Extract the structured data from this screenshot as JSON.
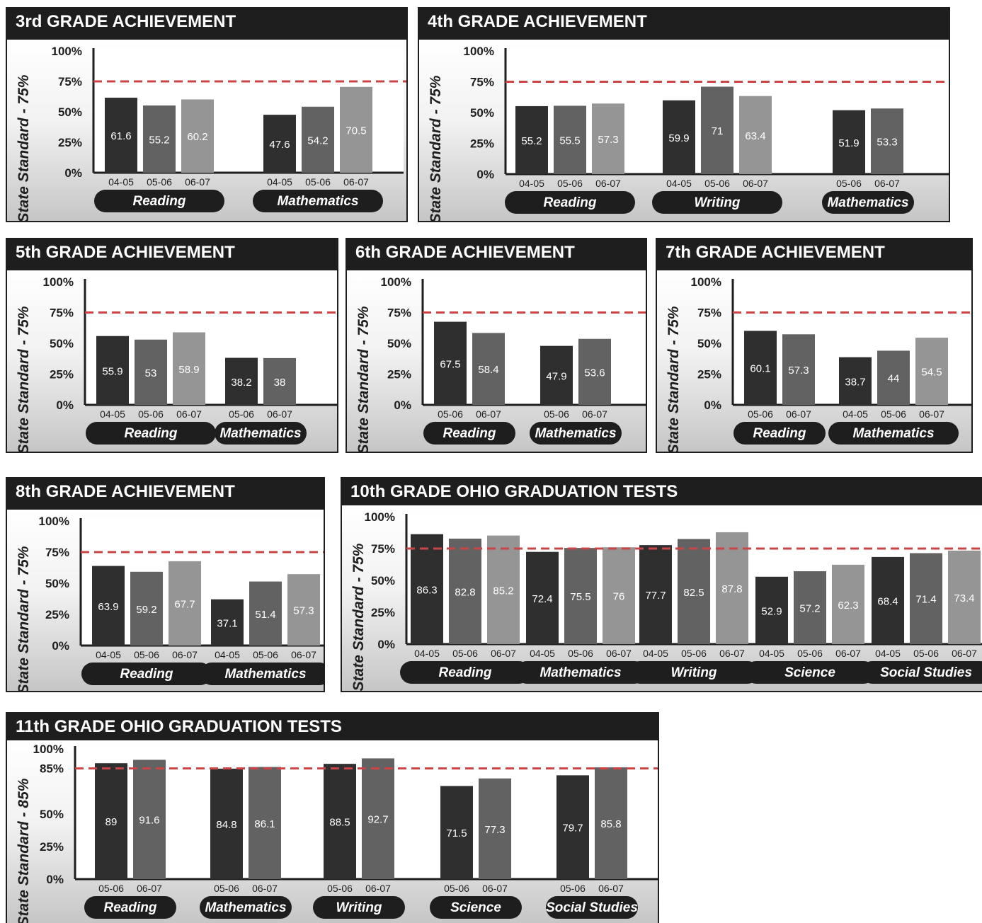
{
  "colors": {
    "bar_dark": "#2f2f2f",
    "bar_mid": "#626262",
    "bar_light": "#959595",
    "standard_line": "#cc4444",
    "panel_header": "#1e1e1e",
    "pill": "#1e1e1e"
  },
  "chart_data": [
    {
      "type": "bar",
      "title": "3rd GRADE ACHIEVEMENT",
      "ylabel": "State Standard - 75%",
      "ylim": [
        0,
        100
      ],
      "yticks": [
        "100%",
        "75%",
        "50%",
        "25%",
        "0%"
      ],
      "standard": 75,
      "groups": [
        {
          "name": "Reading",
          "bars": [
            {
              "label": "04-05",
              "value": 61.6
            },
            {
              "label": "05-06",
              "value": 55.2
            },
            {
              "label": "06-07",
              "value": 60.2
            }
          ]
        },
        {
          "name": "Mathematics",
          "bars": [
            {
              "label": "04-05",
              "value": 47.6
            },
            {
              "label": "05-06",
              "value": 54.2
            },
            {
              "label": "06-07",
              "value": 70.5
            }
          ]
        }
      ]
    },
    {
      "type": "bar",
      "title": "4th GRADE ACHIEVEMENT",
      "ylabel": "State Standard - 75%",
      "ylim": [
        0,
        100
      ],
      "yticks": [
        "100%",
        "75%",
        "50%",
        "25%",
        "0%"
      ],
      "standard": 75,
      "groups": [
        {
          "name": "Reading",
          "bars": [
            {
              "label": "04-05",
              "value": 55.2
            },
            {
              "label": "05-06",
              "value": 55.5
            },
            {
              "label": "06-07",
              "value": 57.3
            }
          ]
        },
        {
          "name": "Writing",
          "bars": [
            {
              "label": "04-05",
              "value": 59.9
            },
            {
              "label": "05-06",
              "value": 71
            },
            {
              "label": "06-07",
              "value": 63.4
            }
          ]
        },
        {
          "name": "Mathematics",
          "bars": [
            {
              "label": "05-06",
              "value": 51.9
            },
            {
              "label": "06-07",
              "value": 53.3
            }
          ]
        }
      ]
    },
    {
      "type": "bar",
      "title": "5th GRADE ACHIEVEMENT",
      "ylabel": "State Standard - 75%",
      "ylim": [
        0,
        100
      ],
      "yticks": [
        "100%",
        "75%",
        "50%",
        "25%",
        "0%"
      ],
      "standard": 75,
      "groups": [
        {
          "name": "Reading",
          "bars": [
            {
              "label": "04-05",
              "value": 55.9
            },
            {
              "label": "05-06",
              "value": 53
            },
            {
              "label": "06-07",
              "value": 58.9
            }
          ]
        },
        {
          "name": "Mathematics",
          "bars": [
            {
              "label": "05-06",
              "value": 38.2
            },
            {
              "label": "06-07",
              "value": 38
            }
          ]
        }
      ]
    },
    {
      "type": "bar",
      "title": "6th GRADE ACHIEVEMENT",
      "ylabel": "State Standard - 75%",
      "ylim": [
        0,
        100
      ],
      "yticks": [
        "100%",
        "75%",
        "50%",
        "25%",
        "0%"
      ],
      "standard": 75,
      "groups": [
        {
          "name": "Reading",
          "bars": [
            {
              "label": "05-06",
              "value": 67.5
            },
            {
              "label": "06-07",
              "value": 58.4
            }
          ]
        },
        {
          "name": "Mathematics",
          "bars": [
            {
              "label": "05-06",
              "value": 47.9
            },
            {
              "label": "06-07",
              "value": 53.6
            }
          ]
        }
      ]
    },
    {
      "type": "bar",
      "title": "7th GRADE ACHIEVEMENT",
      "ylabel": "State Standard - 75%",
      "ylim": [
        0,
        100
      ],
      "yticks": [
        "100%",
        "75%",
        "50%",
        "25%",
        "0%"
      ],
      "standard": 75,
      "groups": [
        {
          "name": "Reading",
          "bars": [
            {
              "label": "05-06",
              "value": 60.1
            },
            {
              "label": "06-07",
              "value": 57.3
            }
          ]
        },
        {
          "name": "Mathematics",
          "bars": [
            {
              "label": "04-05",
              "value": 38.7
            },
            {
              "label": "05-06",
              "value": 44
            },
            {
              "label": "06-07",
              "value": 54.5
            }
          ]
        }
      ]
    },
    {
      "type": "bar",
      "title": "8th GRADE ACHIEVEMENT",
      "ylabel": "State Standard - 75%",
      "ylim": [
        0,
        100
      ],
      "yticks": [
        "100%",
        "75%",
        "50%",
        "25%",
        "0%"
      ],
      "standard": 75,
      "groups": [
        {
          "name": "Reading",
          "bars": [
            {
              "label": "04-05",
              "value": 63.9
            },
            {
              "label": "05-06",
              "value": 59.2
            },
            {
              "label": "06-07",
              "value": 67.7
            }
          ]
        },
        {
          "name": "Mathematics",
          "bars": [
            {
              "label": "04-05",
              "value": 37.1
            },
            {
              "label": "05-06",
              "value": 51.4
            },
            {
              "label": "06-07",
              "value": 57.3
            }
          ]
        }
      ]
    },
    {
      "type": "bar",
      "title": "10th GRADE OHIO GRADUATION TESTS",
      "ylabel": "State Standard - 75%",
      "ylim": [
        0,
        100
      ],
      "yticks": [
        "100%",
        "75%",
        "50%",
        "25%",
        "0%"
      ],
      "standard": 75,
      "groups": [
        {
          "name": "Reading",
          "bars": [
            {
              "label": "04-05",
              "value": 86.3
            },
            {
              "label": "05-06",
              "value": 82.8
            },
            {
              "label": "06-07",
              "value": 85.2
            }
          ]
        },
        {
          "name": "Mathematics",
          "bars": [
            {
              "label": "04-05",
              "value": 72.4
            },
            {
              "label": "05-06",
              "value": 75.5
            },
            {
              "label": "06-07",
              "value": 76
            }
          ]
        },
        {
          "name": "Writing",
          "bars": [
            {
              "label": "04-05",
              "value": 77.7
            },
            {
              "label": "05-06",
              "value": 82.5
            },
            {
              "label": "06-07",
              "value": 87.8
            }
          ]
        },
        {
          "name": "Science",
          "bars": [
            {
              "label": "04-05",
              "value": 52.9
            },
            {
              "label": "05-06",
              "value": 57.2
            },
            {
              "label": "06-07",
              "value": 62.3
            }
          ]
        },
        {
          "name": "Social Studies",
          "bars": [
            {
              "label": "04-05",
              "value": 68.4
            },
            {
              "label": "05-06",
              "value": 71.4
            },
            {
              "label": "06-07",
              "value": 73.4
            }
          ]
        }
      ]
    },
    {
      "type": "bar",
      "title": "11th GRADE OHIO GRADUATION TESTS",
      "ylabel": "State Standard - 85%",
      "ylim": [
        0,
        100
      ],
      "yticks": [
        "100%",
        "85%",
        "50%",
        "25%",
        "0%"
      ],
      "standard": 85,
      "groups": [
        {
          "name": "Reading",
          "bars": [
            {
              "label": "05-06",
              "value": 89
            },
            {
              "label": "06-07",
              "value": 91.6
            }
          ]
        },
        {
          "name": "Mathematics",
          "bars": [
            {
              "label": "05-06",
              "value": 84.8
            },
            {
              "label": "06-07",
              "value": 86.1
            }
          ]
        },
        {
          "name": "Writing",
          "bars": [
            {
              "label": "05-06",
              "value": 88.5
            },
            {
              "label": "06-07",
              "value": 92.7
            }
          ]
        },
        {
          "name": "Science",
          "bars": [
            {
              "label": "05-06",
              "value": 71.5
            },
            {
              "label": "06-07",
              "value": 77.3
            }
          ]
        },
        {
          "name": "Social Studies",
          "bars": [
            {
              "label": "05-06",
              "value": 79.7
            },
            {
              "label": "06-07",
              "value": 85.8
            }
          ]
        }
      ]
    }
  ]
}
